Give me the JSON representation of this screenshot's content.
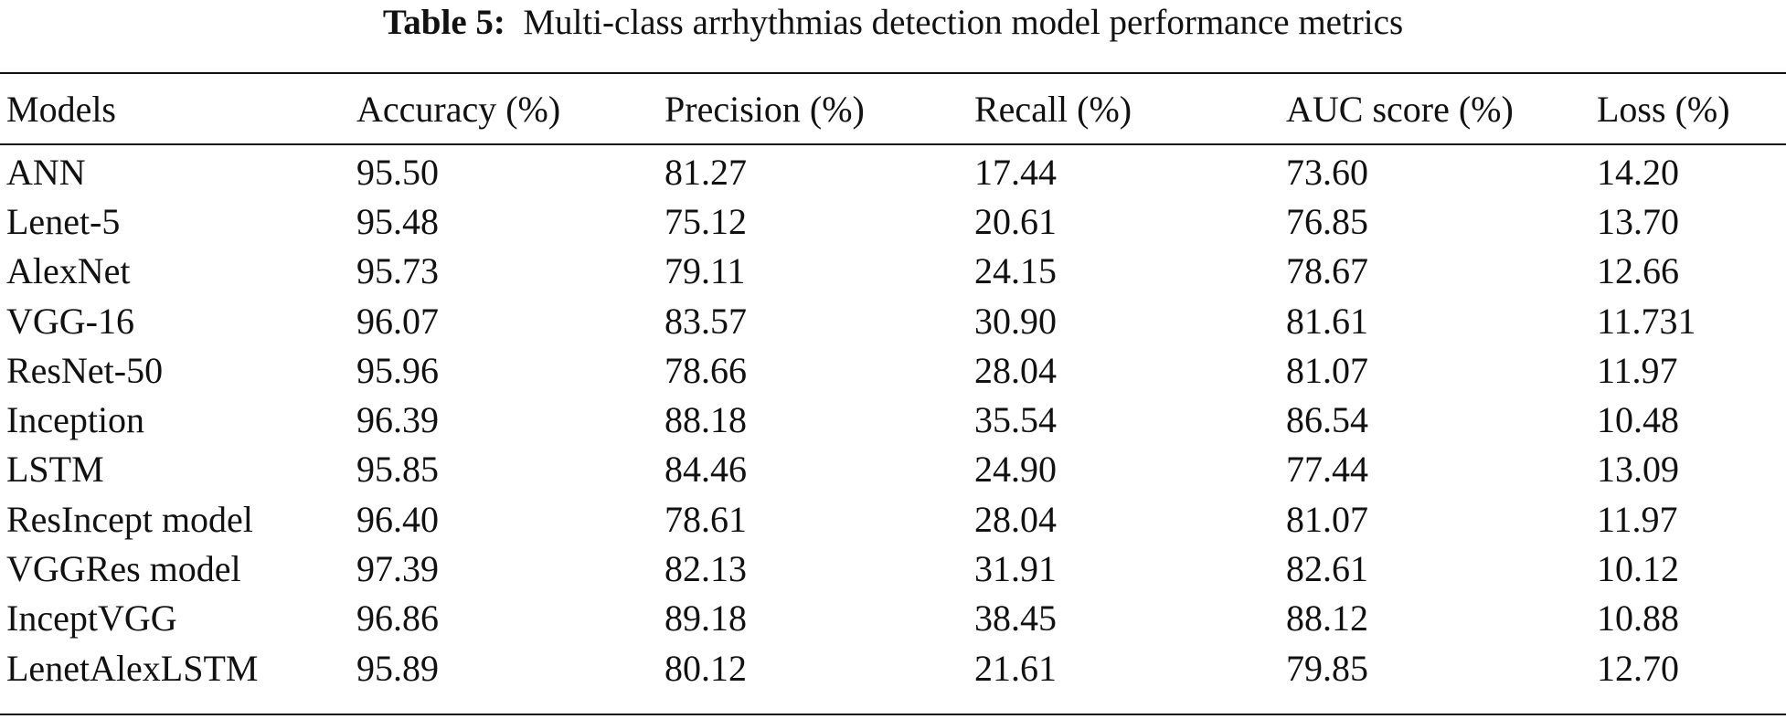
{
  "caption": {
    "label": "Table 5:",
    "text": "Multi-class arrhythmias detection model performance metrics"
  },
  "table": {
    "headers": [
      "Models",
      "Accuracy (%)",
      "Precision (%)",
      "Recall (%)",
      "AUC score (%)",
      "Loss (%)"
    ],
    "rows": [
      [
        "ANN",
        "95.50",
        "81.27",
        "17.44",
        "73.60",
        "14.20"
      ],
      [
        "Lenet-5",
        "95.48",
        "75.12",
        "20.61",
        "76.85",
        "13.70"
      ],
      [
        "AlexNet",
        "95.73",
        "79.11",
        "24.15",
        "78.67",
        "12.66"
      ],
      [
        "VGG-16",
        "96.07",
        "83.57",
        "30.90",
        "81.61",
        "11.731"
      ],
      [
        "ResNet-50",
        "95.96",
        "78.66",
        "28.04",
        "81.07",
        "11.97"
      ],
      [
        "Inception",
        "96.39",
        "88.18",
        "35.54",
        "86.54",
        "10.48"
      ],
      [
        "LSTM",
        "95.85",
        "84.46",
        "24.90",
        "77.44",
        "13.09"
      ],
      [
        "ResIncept model",
        "96.40",
        "78.61",
        "28.04",
        "81.07",
        "11.97"
      ],
      [
        "VGGRes model",
        "97.39",
        "82.13",
        "31.91",
        "82.61",
        "10.12"
      ],
      [
        "InceptVGG",
        "96.86",
        "89.18",
        "38.45",
        "88.12",
        "10.88"
      ],
      [
        "LenetAlexLSTM",
        "95.89",
        "80.12",
        "21.61",
        "79.85",
        "12.70"
      ]
    ]
  }
}
